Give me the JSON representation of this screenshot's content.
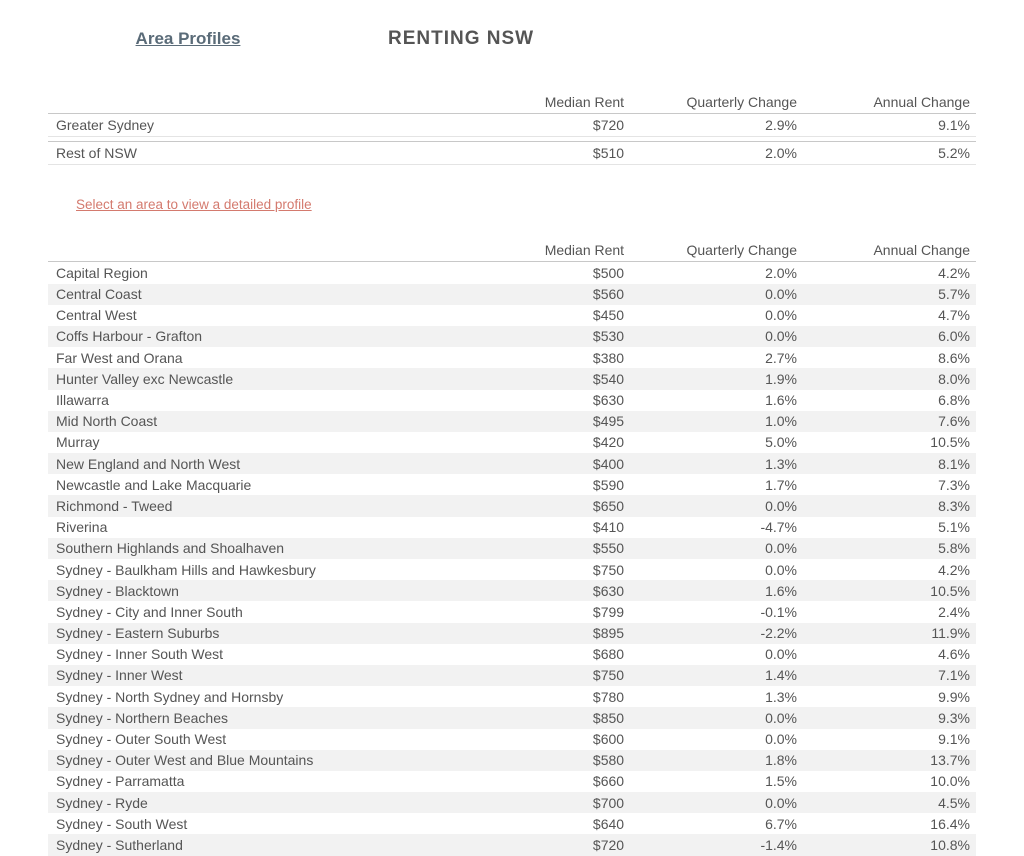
{
  "header": {
    "tab_label": "Area Profiles",
    "title": "RENTING NSW"
  },
  "columns": {
    "name": "",
    "median_rent": "Median Rent",
    "quarterly_change": "Quarterly Change",
    "annual_change": "Annual Change"
  },
  "summary_rows": [
    {
      "name": "Greater Sydney",
      "median": "$720",
      "quarterly": "2.9%",
      "annual": "9.1%"
    },
    {
      "name": "Rest of NSW",
      "median": "$510",
      "quarterly": "2.0%",
      "annual": "5.2%"
    }
  ],
  "instruction_text": "Select an area to view a detailed profile",
  "detail_rows": [
    {
      "name": "Capital Region",
      "median": "$500",
      "quarterly": "2.0%",
      "annual": "4.2%"
    },
    {
      "name": "Central Coast",
      "median": "$560",
      "quarterly": "0.0%",
      "annual": "5.7%"
    },
    {
      "name": "Central West",
      "median": "$450",
      "quarterly": "0.0%",
      "annual": "4.7%"
    },
    {
      "name": "Coffs Harbour - Grafton",
      "median": "$530",
      "quarterly": "0.0%",
      "annual": "6.0%"
    },
    {
      "name": "Far West and Orana",
      "median": "$380",
      "quarterly": "2.7%",
      "annual": "8.6%"
    },
    {
      "name": "Hunter Valley exc Newcastle",
      "median": "$540",
      "quarterly": "1.9%",
      "annual": "8.0%"
    },
    {
      "name": "Illawarra",
      "median": "$630",
      "quarterly": "1.6%",
      "annual": "6.8%"
    },
    {
      "name": "Mid North Coast",
      "median": "$495",
      "quarterly": "1.0%",
      "annual": "7.6%"
    },
    {
      "name": "Murray",
      "median": "$420",
      "quarterly": "5.0%",
      "annual": "10.5%"
    },
    {
      "name": "New England and North West",
      "median": "$400",
      "quarterly": "1.3%",
      "annual": "8.1%"
    },
    {
      "name": "Newcastle and Lake Macquarie",
      "median": "$590",
      "quarterly": "1.7%",
      "annual": "7.3%"
    },
    {
      "name": "Richmond - Tweed",
      "median": "$650",
      "quarterly": "0.0%",
      "annual": "8.3%"
    },
    {
      "name": "Riverina",
      "median": "$410",
      "quarterly": "-4.7%",
      "annual": "5.1%"
    },
    {
      "name": "Southern Highlands and Shoalhaven",
      "median": "$550",
      "quarterly": "0.0%",
      "annual": "5.8%"
    },
    {
      "name": "Sydney - Baulkham Hills and Hawkesbury",
      "median": "$750",
      "quarterly": "0.0%",
      "annual": "4.2%"
    },
    {
      "name": "Sydney - Blacktown",
      "median": "$630",
      "quarterly": "1.6%",
      "annual": "10.5%"
    },
    {
      "name": "Sydney - City and Inner South",
      "median": "$799",
      "quarterly": "-0.1%",
      "annual": "2.4%"
    },
    {
      "name": "Sydney - Eastern Suburbs",
      "median": "$895",
      "quarterly": "-2.2%",
      "annual": "11.9%"
    },
    {
      "name": "Sydney - Inner South West",
      "median": "$680",
      "quarterly": "0.0%",
      "annual": "4.6%"
    },
    {
      "name": "Sydney - Inner West",
      "median": "$750",
      "quarterly": "1.4%",
      "annual": "7.1%"
    },
    {
      "name": "Sydney - North Sydney and Hornsby",
      "median": "$780",
      "quarterly": "1.3%",
      "annual": "9.9%"
    },
    {
      "name": "Sydney - Northern Beaches",
      "median": "$850",
      "quarterly": "0.0%",
      "annual": "9.3%"
    },
    {
      "name": "Sydney - Outer South West",
      "median": "$600",
      "quarterly": "0.0%",
      "annual": "9.1%"
    },
    {
      "name": "Sydney - Outer West and Blue Mountains",
      "median": "$580",
      "quarterly": "1.8%",
      "annual": "13.7%"
    },
    {
      "name": "Sydney - Parramatta",
      "median": "$660",
      "quarterly": "1.5%",
      "annual": "10.0%"
    },
    {
      "name": "Sydney - Ryde",
      "median": "$700",
      "quarterly": "0.0%",
      "annual": "4.5%"
    },
    {
      "name": "Sydney - South West",
      "median": "$640",
      "quarterly": "6.7%",
      "annual": "16.4%"
    },
    {
      "name": "Sydney - Sutherland",
      "median": "$720",
      "quarterly": "-1.4%",
      "annual": "10.8%"
    }
  ],
  "style": {
    "row_alt_bg": "#f2f2f2",
    "row_bg": "#ffffff",
    "border_color": "#c8c8c8",
    "text_color": "#555555",
    "link_color": "#d47a6e",
    "tab_color": "#5a6b78",
    "font_size_body": 14,
    "font_size_title": 19
  }
}
